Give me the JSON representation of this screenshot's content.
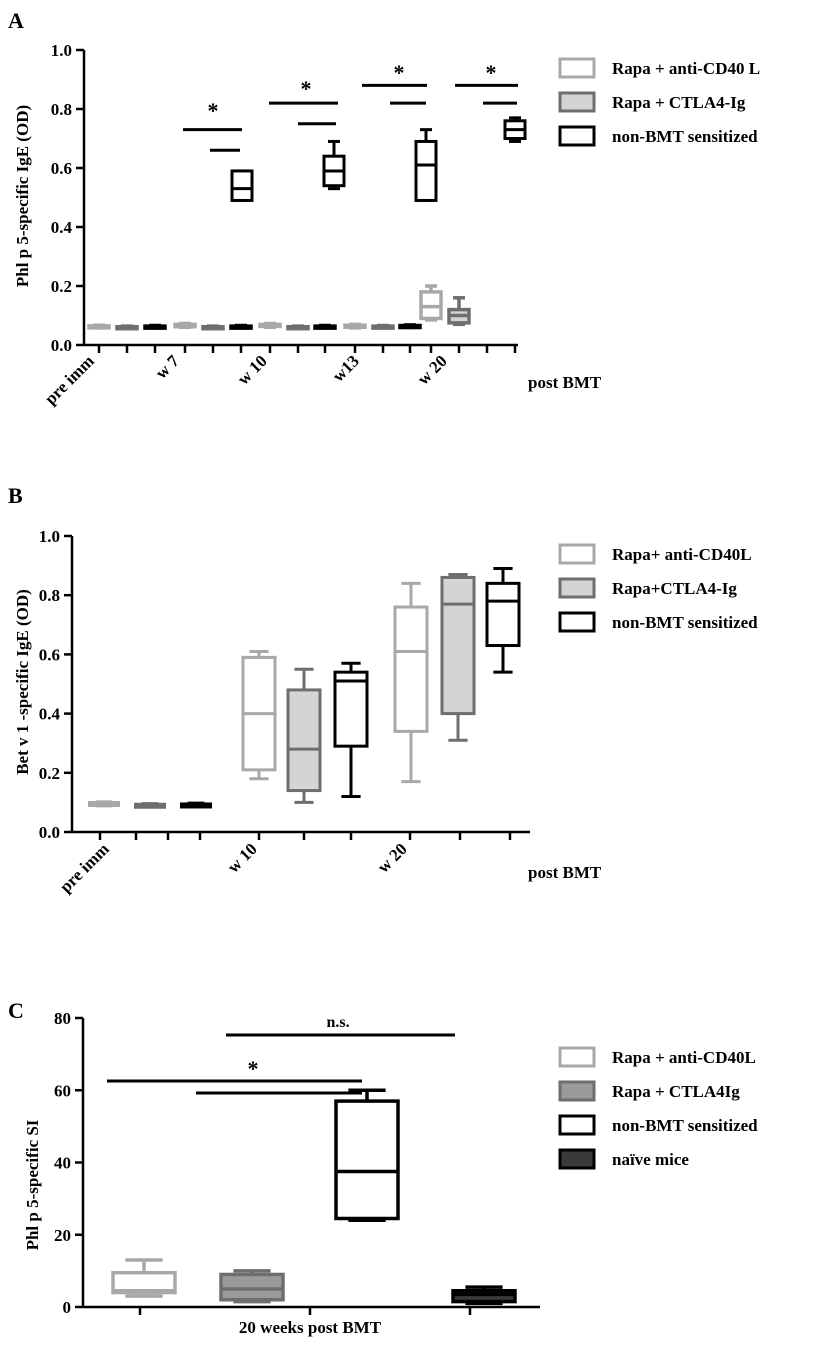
{
  "colors": {
    "light_gray": "#a8a8a8",
    "medium_gray": "#6e6e6e",
    "medium_fill": "#d4d4d4",
    "medium_fill_c": "#9a9a9a",
    "black": "#000000",
    "dark_fill": "#3a3a3a"
  },
  "chart_data": [
    {
      "panel": "A",
      "type": "box",
      "ylabel": "Phl p 5-specific IgE (OD)",
      "xlabel": "post BMT",
      "categories": [
        "pre imm",
        "w 7",
        "w 10",
        "w13",
        "w 20"
      ],
      "yticks": [
        "0.0",
        "0.2",
        "0.4",
        "0.6",
        "0.8",
        "1.0"
      ],
      "ylim": [
        0,
        1.0
      ],
      "legend_position": "right",
      "series": [
        {
          "name": "Rapa + anti-CD40 L",
          "color": "#a8a8a8",
          "fill": "#ffffff",
          "boxes": [
            {
              "min": 0.058,
              "q1": 0.06,
              "median": 0.062,
              "q3": 0.065,
              "max": 0.067
            },
            {
              "min": 0.06,
              "q1": 0.062,
              "median": 0.066,
              "q3": 0.07,
              "max": 0.073
            },
            {
              "min": 0.06,
              "q1": 0.063,
              "median": 0.066,
              "q3": 0.07,
              "max": 0.073
            },
            {
              "min": 0.058,
              "q1": 0.061,
              "median": 0.064,
              "q3": 0.067,
              "max": 0.07
            },
            {
              "min": 0.085,
              "q1": 0.09,
              "median": 0.13,
              "q3": 0.18,
              "max": 0.2
            }
          ]
        },
        {
          "name": "Rapa + CTLA4-Ig",
          "color": "#6e6e6e",
          "fill": "#d4d4d4",
          "boxes": [
            {
              "min": 0.057,
              "q1": 0.059,
              "median": 0.06,
              "q3": 0.062,
              "max": 0.064
            },
            {
              "min": 0.057,
              "q1": 0.059,
              "median": 0.06,
              "q3": 0.062,
              "max": 0.064
            },
            {
              "min": 0.057,
              "q1": 0.059,
              "median": 0.06,
              "q3": 0.062,
              "max": 0.064
            },
            {
              "min": 0.058,
              "q1": 0.06,
              "median": 0.062,
              "q3": 0.064,
              "max": 0.066
            },
            {
              "min": 0.07,
              "q1": 0.075,
              "median": 0.1,
              "q3": 0.12,
              "max": 0.16
            }
          ]
        },
        {
          "name": "non-BMT sensitized",
          "color": "#000000",
          "fill": "#ffffff",
          "boxes": [
            {
              "min": 0.058,
              "q1": 0.06,
              "median": 0.062,
              "q3": 0.064,
              "max": 0.066
            },
            {
              "min": 0.058,
              "q1": 0.06,
              "median": 0.062,
              "q3": 0.064,
              "max": 0.066
            },
            {
              "min": 0.058,
              "q1": 0.06,
              "median": 0.062,
              "q3": 0.064,
              "max": 0.066
            },
            {
              "min": 0.06,
              "q1": 0.062,
              "median": 0.064,
              "q3": 0.066,
              "max": 0.068
            },
            null
          ]
        }
      ],
      "late_boxes": [
        {
          "min": 0.49,
          "q1": 0.49,
          "median": 0.53,
          "q3": 0.59,
          "max": 0.59,
          "color": "#000000",
          "fill": "#ffffff"
        },
        {
          "min": 0.53,
          "q1": 0.54,
          "median": 0.59,
          "q3": 0.64,
          "max": 0.69,
          "color": "#000000",
          "fill": "#ffffff"
        },
        {
          "min": 0.49,
          "q1": 0.49,
          "median": 0.61,
          "q3": 0.69,
          "max": 0.73,
          "color": "#000000",
          "fill": "#ffffff"
        },
        {
          "min": 0.69,
          "q1": 0.7,
          "median": 0.73,
          "q3": 0.76,
          "max": 0.77,
          "color": "#000000",
          "fill": "#ffffff"
        }
      ],
      "annotations": [
        "*",
        "*",
        "*",
        "*"
      ]
    },
    {
      "panel": "B",
      "type": "box",
      "ylabel": "Bet v 1 -specific IgE (OD)",
      "xlabel": "post BMT",
      "categories": [
        "pre imm",
        "w 10",
        "w 20"
      ],
      "yticks": [
        "0.0",
        "0.2",
        "0.4",
        "0.6",
        "0.8",
        "1.0"
      ],
      "ylim": [
        0,
        1.0
      ],
      "legend_position": "right",
      "series": [
        {
          "name": "Rapa+ anti-CD40L",
          "color": "#a8a8a8",
          "fill": "#ffffff",
          "boxes": [
            {
              "min": 0.09,
              "q1": 0.092,
              "median": 0.095,
              "q3": 0.098,
              "max": 0.1
            },
            {
              "min": 0.18,
              "q1": 0.21,
              "median": 0.4,
              "q3": 0.59,
              "max": 0.61
            },
            {
              "min": 0.17,
              "q1": 0.34,
              "median": 0.61,
              "q3": 0.76,
              "max": 0.84
            }
          ]
        },
        {
          "name": "Rapa+CTLA4-Ig",
          "color": "#6e6e6e",
          "fill": "#d4d4d4",
          "boxes": [
            {
              "min": 0.087,
              "q1": 0.089,
              "median": 0.09,
              "q3": 0.092,
              "max": 0.094
            },
            {
              "min": 0.1,
              "q1": 0.14,
              "median": 0.28,
              "q3": 0.48,
              "max": 0.55
            },
            {
              "min": 0.31,
              "q1": 0.4,
              "median": 0.77,
              "q3": 0.86,
              "max": 0.87
            }
          ]
        },
        {
          "name": "non-BMT sensitized",
          "color": "#000000",
          "fill": "#ffffff",
          "boxes": [
            {
              "min": 0.087,
              "q1": 0.089,
              "median": 0.09,
              "q3": 0.093,
              "max": 0.096
            },
            {
              "min": 0.12,
              "q1": 0.29,
              "median": 0.51,
              "q3": 0.54,
              "max": 0.57
            },
            {
              "min": 0.54,
              "q1": 0.63,
              "median": 0.78,
              "q3": 0.84,
              "max": 0.89
            }
          ]
        }
      ]
    },
    {
      "panel": "C",
      "type": "box",
      "ylabel": "Phl p 5-specific SI",
      "xlabel": "20 weeks post BMT",
      "yticks": [
        "0",
        "20",
        "40",
        "60",
        "80"
      ],
      "ylim": [
        0,
        80
      ],
      "legend_position": "right",
      "series": [
        {
          "name": "Rapa + anti-CD40L",
          "color": "#a8a8a8",
          "fill": "#ffffff",
          "box": {
            "min": 3,
            "q1": 4,
            "median": 4.5,
            "q3": 9.5,
            "max": 13
          }
        },
        {
          "name": "Rapa + CTLA4Ig",
          "color": "#6e6e6e",
          "fill": "#9a9a9a",
          "box": {
            "min": 1.5,
            "q1": 2,
            "median": 5,
            "q3": 9,
            "max": 10
          }
        },
        {
          "name": "non-BMT sensitized",
          "color": "#000000",
          "fill": "#ffffff",
          "box": {
            "min": 24,
            "q1": 24.5,
            "median": 37.5,
            "q3": 57,
            "max": 60
          }
        },
        {
          "name": "naïve mice",
          "color": "#000000",
          "fill": "#3a3a3a",
          "box": {
            "min": 1,
            "q1": 1.5,
            "median": 3.5,
            "q3": 4.5,
            "max": 5.5
          }
        }
      ],
      "annotations": [
        "*",
        "n.s."
      ]
    }
  ],
  "panels": {
    "a_label": "A",
    "b_label": "B",
    "c_label": "C"
  }
}
